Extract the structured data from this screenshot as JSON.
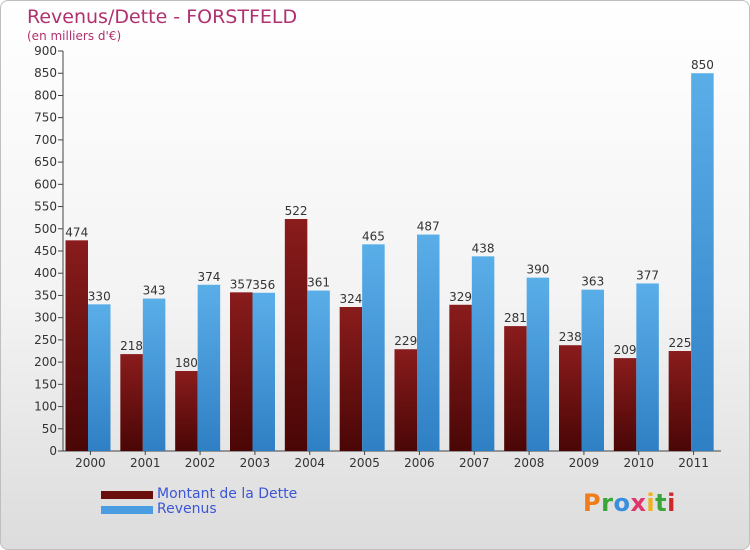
{
  "header": {
    "title": "Revenus/Dette - FORSTFELD",
    "subtitle": "(en milliers d'€)"
  },
  "colors": {
    "dette": "#7a1414",
    "revenus": "#4a9de0",
    "title": "#b03070",
    "legend_text": "#3b56d6"
  },
  "legend": {
    "items": [
      {
        "label": "Montant de la Dette",
        "color": "#6a0e0e"
      },
      {
        "label": "Revenus",
        "color": "#4a9de0"
      }
    ]
  },
  "logo": {
    "text": "Proxiti",
    "letter_colors": [
      "#f07c1a",
      "#3aa63a",
      "#3a8ee0",
      "#e0356a",
      "#f0b21a",
      "#3aa63a",
      "#d02828"
    ],
    "icon": "proxiti-logo"
  },
  "chart_data": {
    "type": "bar",
    "categories": [
      "2000",
      "2001",
      "2002",
      "2003",
      "2004",
      "2005",
      "2006",
      "2007",
      "2008",
      "2009",
      "2010",
      "2011"
    ],
    "series": [
      {
        "name": "Montant de la Dette",
        "values": [
          474,
          218,
          180,
          357,
          522,
          324,
          229,
          329,
          281,
          238,
          209,
          225
        ]
      },
      {
        "name": "Revenus",
        "values": [
          330,
          343,
          374,
          356,
          361,
          465,
          487,
          438,
          390,
          363,
          377,
          850
        ]
      }
    ],
    "ylim": [
      0,
      900
    ],
    "yticks": [
      "0",
      "50",
      "100",
      "150",
      "200",
      "250",
      "300",
      "350",
      "400",
      "450",
      "500",
      "550",
      "600",
      "650",
      "700",
      "750",
      "800",
      "850",
      "900"
    ],
    "grid": false,
    "legend_position": "bottom-left"
  }
}
